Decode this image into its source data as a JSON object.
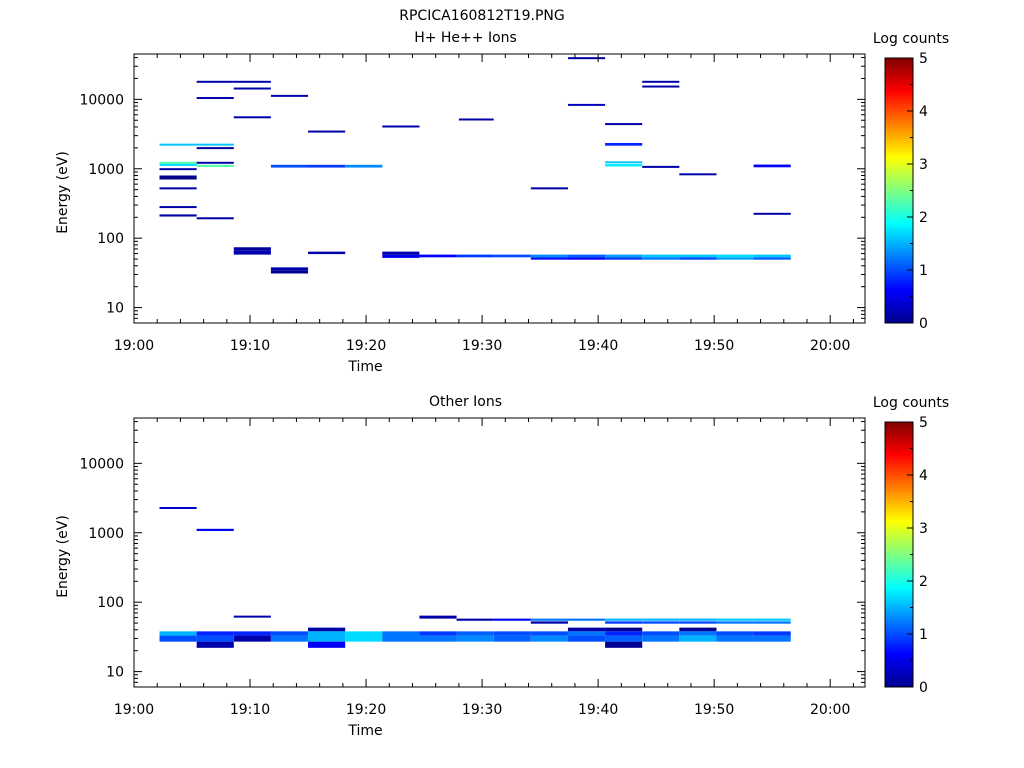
{
  "page": {
    "title": "RPCICA160812T19.PNG"
  },
  "chart_data": [
    {
      "type": "heatmap",
      "title": "H+ He++ Ions",
      "xlabel": "Time",
      "ylabel": "Energy (eV)",
      "x_ticks": [
        "19:00",
        "19:10",
        "19:20",
        "19:30",
        "19:40",
        "19:50",
        "20:00"
      ],
      "xlim_minutes": [
        0,
        63
      ],
      "y_scale": "log",
      "ylim": [
        6,
        45000
      ],
      "y_ticks": [
        "10",
        "100",
        "1000",
        "10000"
      ],
      "colorbar": {
        "label": "Log counts",
        "range": [
          0,
          5
        ],
        "ticks": [
          "0",
          "1",
          "2",
          "3",
          "4",
          "5"
        ]
      },
      "cells": [
        [
          2.2,
          5.4,
          2300,
          2200,
          1.6
        ],
        [
          2.2,
          5.4,
          1260,
          1180,
          2.3
        ],
        [
          2.2,
          5.4,
          1180,
          1100,
          1.7
        ],
        [
          2.2,
          5.4,
          1020,
          970,
          0.2
        ],
        [
          2.2,
          5.4,
          800,
          700,
          0.05
        ],
        [
          2.2,
          5.4,
          540,
          510,
          0.2
        ],
        [
          2.2,
          5.4,
          290,
          275,
          0.2
        ],
        [
          2.2,
          5.4,
          220,
          205,
          0.2
        ],
        [
          5.4,
          8.6,
          2300,
          2200,
          1.6
        ],
        [
          5.4,
          8.6,
          2050,
          1950,
          0.1
        ],
        [
          5.4,
          8.6,
          1260,
          1180,
          0.2
        ],
        [
          5.4,
          8.6,
          1140,
          1060,
          2.3
        ],
        [
          5.4,
          8.6,
          10800,
          10200,
          0.2
        ],
        [
          5.4,
          8.6,
          18500,
          17800,
          0.2
        ],
        [
          5.4,
          8.6,
          200,
          188,
          0.2
        ],
        [
          8.6,
          11.8,
          18500,
          17800,
          0.2
        ],
        [
          8.6,
          11.8,
          14800,
          14200,
          0.2
        ],
        [
          8.6,
          11.8,
          5700,
          5450,
          0.2
        ],
        [
          8.6,
          11.8,
          74,
          66,
          0.15
        ],
        [
          8.6,
          11.8,
          66,
          58,
          0.25
        ],
        [
          11.8,
          15.0,
          11600,
          11000,
          0.2
        ],
        [
          11.8,
          15.0,
          1140,
          1040,
          1.0
        ],
        [
          11.8,
          15.0,
          38,
          34,
          0.2
        ],
        [
          11.8,
          15.0,
          34,
          31,
          0.1
        ],
        [
          15.0,
          18.2,
          3550,
          3400,
          0.2
        ],
        [
          15.0,
          18.2,
          1140,
          1040,
          0.9
        ],
        [
          15.0,
          18.2,
          64,
          59,
          0.2
        ],
        [
          18.2,
          21.4,
          1140,
          1040,
          1.3
        ],
        [
          21.4,
          24.6,
          4200,
          4000,
          0.2
        ],
        [
          21.4,
          24.6,
          64,
          58,
          0.2
        ],
        [
          21.4,
          24.6,
          58,
          52,
          0.5
        ],
        [
          24.6,
          27.8,
          58,
          53,
          0.6
        ],
        [
          27.8,
          31.0,
          58,
          53,
          0.9
        ],
        [
          28.0,
          31.0,
          5300,
          5050,
          0.2
        ],
        [
          31.0,
          34.2,
          58,
          53,
          1.0
        ],
        [
          34.2,
          37.4,
          58,
          53,
          1.3
        ],
        [
          34.2,
          37.4,
          53,
          49,
          0.7
        ],
        [
          34.2,
          37.4,
          540,
          515,
          0.2
        ],
        [
          37.4,
          40.6,
          58,
          53,
          1.1
        ],
        [
          37.4,
          40.6,
          53,
          49,
          0.6
        ],
        [
          37.4,
          40.6,
          40500,
          39000,
          0.2
        ],
        [
          37.4,
          40.6,
          8600,
          8200,
          0.3
        ],
        [
          40.6,
          43.8,
          58,
          53,
          1.4
        ],
        [
          40.6,
          43.8,
          53,
          49,
          0.9
        ],
        [
          40.6,
          43.8,
          1280,
          1200,
          1.6
        ],
        [
          40.6,
          43.8,
          1170,
          1080,
          1.8
        ],
        [
          40.6,
          43.8,
          2350,
          2150,
          0.8
        ],
        [
          40.6,
          43.8,
          4550,
          4350,
          0.2
        ],
        [
          43.8,
          47.0,
          58,
          53,
          1.6
        ],
        [
          43.8,
          47.0,
          53,
          49,
          1.2
        ],
        [
          43.8,
          47.0,
          1100,
          1050,
          0.2
        ],
        [
          43.8,
          47.0,
          18500,
          17800,
          0.2
        ],
        [
          43.8,
          47.0,
          15800,
          15200,
          0.2
        ],
        [
          47.0,
          50.2,
          58,
          53,
          1.6
        ],
        [
          47.0,
          50.2,
          53,
          49,
          1.0
        ],
        [
          47.0,
          50.2,
          860,
          820,
          0.2
        ],
        [
          50.2,
          53.4,
          58,
          53,
          1.7
        ],
        [
          50.2,
          53.4,
          53,
          49,
          1.4
        ],
        [
          53.4,
          56.6,
          58,
          53,
          1.6
        ],
        [
          53.4,
          56.6,
          53,
          49,
          1.1
        ],
        [
          53.4,
          56.6,
          1150,
          1050,
          0.6
        ],
        [
          53.4,
          56.6,
          232,
          222,
          0.2
        ]
      ]
    },
    {
      "type": "heatmap",
      "title": "Other Ions",
      "xlabel": "Time",
      "ylabel": "Energy (eV)",
      "x_ticks": [
        "19:00",
        "19:10",
        "19:20",
        "19:30",
        "19:40",
        "19:50",
        "20:00"
      ],
      "xlim_minutes": [
        0,
        63
      ],
      "y_scale": "log",
      "ylim": [
        6,
        45000
      ],
      "y_ticks": [
        "10",
        "100",
        "1000",
        "10000"
      ],
      "colorbar": {
        "label": "Log counts",
        "range": [
          0,
          5
        ],
        "ticks": [
          "0",
          "1",
          "2",
          "3",
          "4",
          "5"
        ]
      },
      "cells": [
        [
          2.2,
          5.4,
          2350,
          2250,
          0.4
        ],
        [
          2.2,
          5.4,
          38,
          33,
          1.5
        ],
        [
          2.2,
          5.4,
          33,
          27,
          1.0
        ],
        [
          5.4,
          8.6,
          1140,
          1060,
          0.6
        ],
        [
          5.4,
          8.6,
          38,
          33,
          0.8
        ],
        [
          5.4,
          8.6,
          33,
          27,
          1.0
        ],
        [
          5.4,
          8.6,
          27,
          22,
          0.2
        ],
        [
          8.6,
          11.8,
          64,
          60,
          0.2
        ],
        [
          8.6,
          11.8,
          38,
          33,
          0.8
        ],
        [
          8.6,
          11.8,
          33,
          27,
          0.2
        ],
        [
          11.8,
          15.0,
          38,
          33,
          1.0
        ],
        [
          11.8,
          15.0,
          33,
          27,
          1.2
        ],
        [
          15.0,
          18.2,
          43,
          38,
          0.2
        ],
        [
          15.0,
          18.2,
          38,
          27,
          1.5
        ],
        [
          15.0,
          18.2,
          27,
          22,
          0.6
        ],
        [
          18.2,
          21.4,
          38,
          27,
          1.7
        ],
        [
          21.4,
          24.6,
          38,
          27,
          1.2
        ],
        [
          24.6,
          27.8,
          64,
          58,
          0.2
        ],
        [
          24.6,
          27.8,
          38,
          33,
          0.9
        ],
        [
          24.6,
          27.8,
          33,
          27,
          1.2
        ],
        [
          27.8,
          31.0,
          58,
          54,
          0.2
        ],
        [
          27.8,
          31.0,
          38,
          33,
          1.1
        ],
        [
          27.8,
          31.0,
          33,
          27,
          1.3
        ],
        [
          31.0,
          34.2,
          58,
          54,
          0.6
        ],
        [
          31.0,
          34.2,
          38,
          33,
          1.0
        ],
        [
          31.0,
          34.2,
          33,
          27,
          1.1
        ],
        [
          34.2,
          37.4,
          58,
          54,
          1.2
        ],
        [
          34.2,
          37.4,
          53,
          49,
          0.2
        ],
        [
          34.2,
          37.4,
          38,
          33,
          1.0
        ],
        [
          34.2,
          37.4,
          33,
          27,
          1.3
        ],
        [
          37.4,
          40.6,
          58,
          54,
          1.2
        ],
        [
          37.4,
          40.6,
          43,
          38,
          0.2
        ],
        [
          37.4,
          40.6,
          38,
          33,
          1.2
        ],
        [
          37.4,
          40.6,
          33,
          27,
          1.0
        ],
        [
          40.6,
          43.8,
          58,
          54,
          1.5
        ],
        [
          40.6,
          43.8,
          53,
          49,
          0.9
        ],
        [
          40.6,
          43.8,
          43,
          38,
          0.1
        ],
        [
          40.6,
          43.8,
          38,
          33,
          0.8
        ],
        [
          40.6,
          43.8,
          33,
          27,
          1.1
        ],
        [
          40.6,
          43.8,
          27,
          22,
          0.1
        ],
        [
          43.8,
          47.0,
          58,
          54,
          1.5
        ],
        [
          43.8,
          47.0,
          53,
          49,
          1.0
        ],
        [
          43.8,
          47.0,
          38,
          33,
          1.0
        ],
        [
          43.8,
          47.0,
          33,
          27,
          1.2
        ],
        [
          47.0,
          50.2,
          58,
          54,
          1.5
        ],
        [
          47.0,
          50.2,
          53,
          49,
          1.0
        ],
        [
          47.0,
          50.2,
          43,
          38,
          0.1
        ],
        [
          47.0,
          50.2,
          38,
          33,
          1.2
        ],
        [
          47.0,
          50.2,
          33,
          27,
          1.5
        ],
        [
          50.2,
          53.4,
          58,
          54,
          1.6
        ],
        [
          50.2,
          53.4,
          53,
          49,
          1.2
        ],
        [
          50.2,
          53.4,
          38,
          33,
          1.0
        ],
        [
          50.2,
          53.4,
          33,
          27,
          1.2
        ],
        [
          53.4,
          56.6,
          58,
          54,
          1.6
        ],
        [
          53.4,
          56.6,
          53,
          49,
          1.2
        ],
        [
          53.4,
          56.6,
          38,
          33,
          0.9
        ],
        [
          53.4,
          56.6,
          33,
          27,
          1.2
        ]
      ]
    }
  ]
}
